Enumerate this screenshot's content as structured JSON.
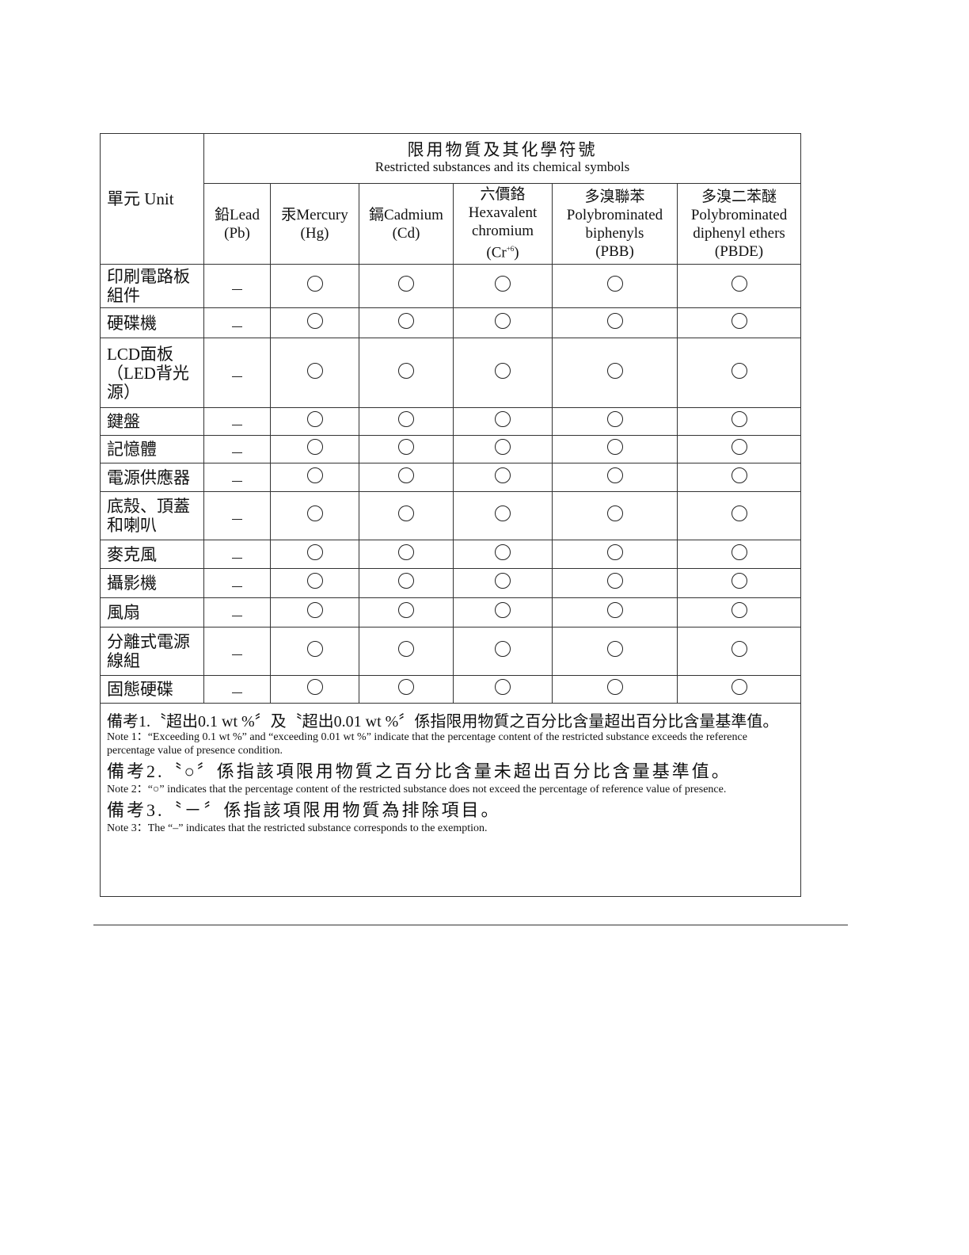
{
  "header": {
    "unit_label": "單元 Unit",
    "title_cn": "限用物質及其化學符號",
    "title_en": "Restricted substances and its chemical symbols",
    "columns": [
      {
        "cn": "鉛Lead",
        "symbol": "(Pb)"
      },
      {
        "cn": "汞Mercury",
        "symbol": "(Hg)"
      },
      {
        "cn": "鎘Cadmium",
        "symbol": "(Cd)"
      },
      {
        "cn": "六價鉻",
        "en": "Hexavalent chromium",
        "symbol": "(Cr",
        "sup": "+6",
        "close": ")"
      },
      {
        "cn": "多溴聯苯",
        "en": "Polybrominated biphenyls",
        "symbol": "(PBB)"
      },
      {
        "cn": "多溴二苯醚",
        "en": "Polybrominated diphenyl ethers",
        "symbol": "(PBDE)"
      }
    ]
  },
  "rows": [
    {
      "unit": "印刷電路板組件",
      "values": [
        "-",
        "○",
        "○",
        "○",
        "○",
        "○"
      ]
    },
    {
      "unit": "硬碟機",
      "values": [
        "-",
        "○",
        "○",
        "○",
        "○",
        "○"
      ]
    },
    {
      "unit": "LCD面板（LED背光源）",
      "values": [
        "-",
        "○",
        "○",
        "○",
        "○",
        "○"
      ]
    },
    {
      "unit": "鍵盤",
      "values": [
        "-",
        "○",
        "○",
        "○",
        "○",
        "○"
      ]
    },
    {
      "unit": "記憶體",
      "values": [
        "-",
        "○",
        "○",
        "○",
        "○",
        "○"
      ]
    },
    {
      "unit": "電源供應器",
      "values": [
        "-",
        "○",
        "○",
        "○",
        "○",
        "○"
      ]
    },
    {
      "unit": "底殼、頂蓋和喇叭",
      "values": [
        "-",
        "○",
        "○",
        "○",
        "○",
        "○"
      ]
    },
    {
      "unit": "麥克風",
      "values": [
        "-",
        "○",
        "○",
        "○",
        "○",
        "○"
      ]
    },
    {
      "unit": "攝影機",
      "values": [
        "-",
        "○",
        "○",
        "○",
        "○",
        "○"
      ]
    },
    {
      "unit": "風扇",
      "values": [
        "-",
        "○",
        "○",
        "○",
        "○",
        "○"
      ]
    },
    {
      "unit": "分離式電源線組",
      "values": [
        "-",
        "○",
        "○",
        "○",
        "○",
        "○"
      ]
    },
    {
      "unit": "固態硬碟",
      "values": [
        "-",
        "○",
        "○",
        "○",
        "○",
        "○"
      ]
    }
  ],
  "notes": {
    "note1_cn": "備考1.〝超出0.1 wt %〞及〝超出0.01 wt %〞係指限用物質之百分比含量超出百分比含量基準值。",
    "note1_en": "Note 1：“Exceeding 0.1 wt %” and “exceeding 0.01 wt %” indicate that the percentage content of the restricted substance exceeds the reference percentage value of presence condition.",
    "note2_cn": "備考2.〝○〞係指該項限用物質之百分比含量未超出百分比含量基準值。",
    "note2_en": "Note 2：“○” indicates that the percentage content of the restricted substance does not exceed the percentage of reference value of presence.",
    "note3_cn": "備考3.〝－〞係指該項限用物質為排除項目。",
    "note3_en": "Note 3：The “–” indicates that the restricted substance corresponds to the exemption."
  }
}
